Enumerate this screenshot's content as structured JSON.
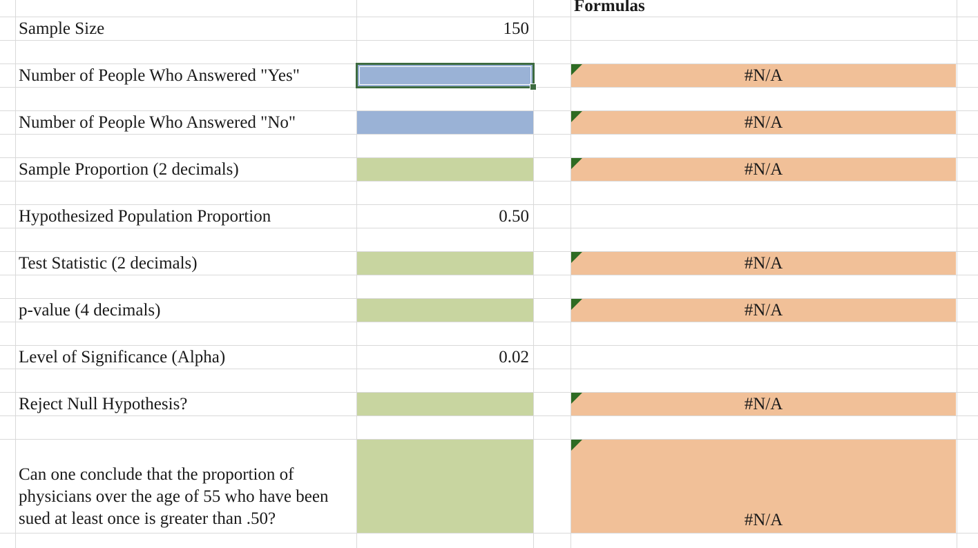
{
  "header": {
    "formulas_label": "Formulas"
  },
  "rows": {
    "sample_size": {
      "label": "Sample Size",
      "value": "150"
    },
    "yes_count": {
      "label": "Number of People Who Answered \"Yes\"",
      "value": "",
      "formula": "#N/A"
    },
    "no_count": {
      "label": "Number of People Who Answered \"No\"",
      "value": "",
      "formula": "#N/A"
    },
    "sample_proportion": {
      "label": "Sample Proportion (2 decimals)",
      "value": "",
      "formula": "#N/A"
    },
    "hypothesized_proportion": {
      "label": "Hypothesized Population Proportion",
      "value": "0.50"
    },
    "test_statistic": {
      "label": "Test Statistic (2 decimals)",
      "value": "",
      "formula": "#N/A"
    },
    "p_value": {
      "label": "p-value (4 decimals)",
      "value": "",
      "formula": "#N/A"
    },
    "alpha": {
      "label": "Level of Significance (Alpha)",
      "value": "0.02"
    },
    "reject_null": {
      "label": "Reject Null Hypothesis?",
      "value": "",
      "formula": "#N/A"
    },
    "conclusion": {
      "label": "Can one conclude that the proportion of physicians over the age of 55 who have been sued at least once is greater than .50?",
      "value": "",
      "formula": "#N/A"
    }
  },
  "colors": {
    "input_fill": "#9ab2d6",
    "output_fill": "#c8d5a0",
    "formula_fill": "#f1c098",
    "gridline": "#d9d9d9",
    "selection": "#3d6b40"
  }
}
